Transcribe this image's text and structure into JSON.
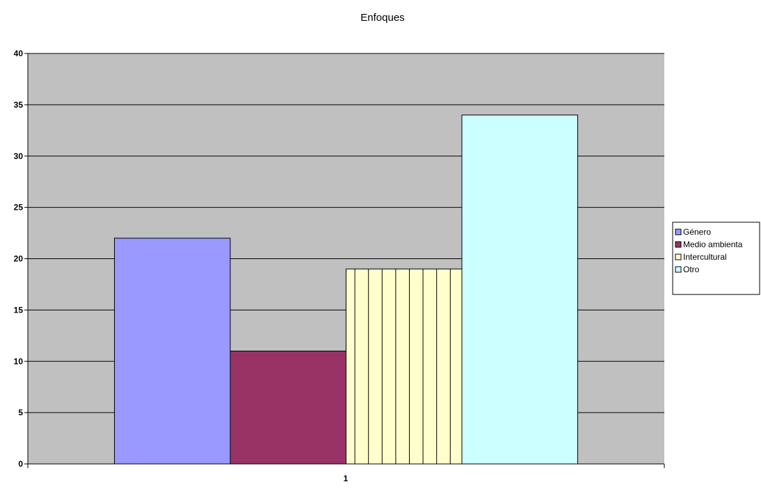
{
  "chart_data": {
    "type": "bar",
    "title": "Enfoques",
    "categories": [
      "1"
    ],
    "series": [
      {
        "name": "Género",
        "values": [
          22
        ],
        "color": "#9999ff",
        "pattern": "solid"
      },
      {
        "name": "Medio ambienta",
        "values": [
          11
        ],
        "color": "#993366",
        "pattern": "solid"
      },
      {
        "name": "Intercultural",
        "values": [
          19
        ],
        "color": "#ffffcc",
        "pattern": "vertical-lines"
      },
      {
        "name": "Otro",
        "values": [
          34
        ],
        "color": "#ccffff",
        "pattern": "solid"
      }
    ],
    "ylim": [
      0,
      40
    ],
    "yticks": [
      0,
      5,
      10,
      15,
      20,
      25,
      30,
      35,
      40
    ],
    "grid": true,
    "plot_background": "#c0c0c0",
    "legend_position": "right"
  }
}
